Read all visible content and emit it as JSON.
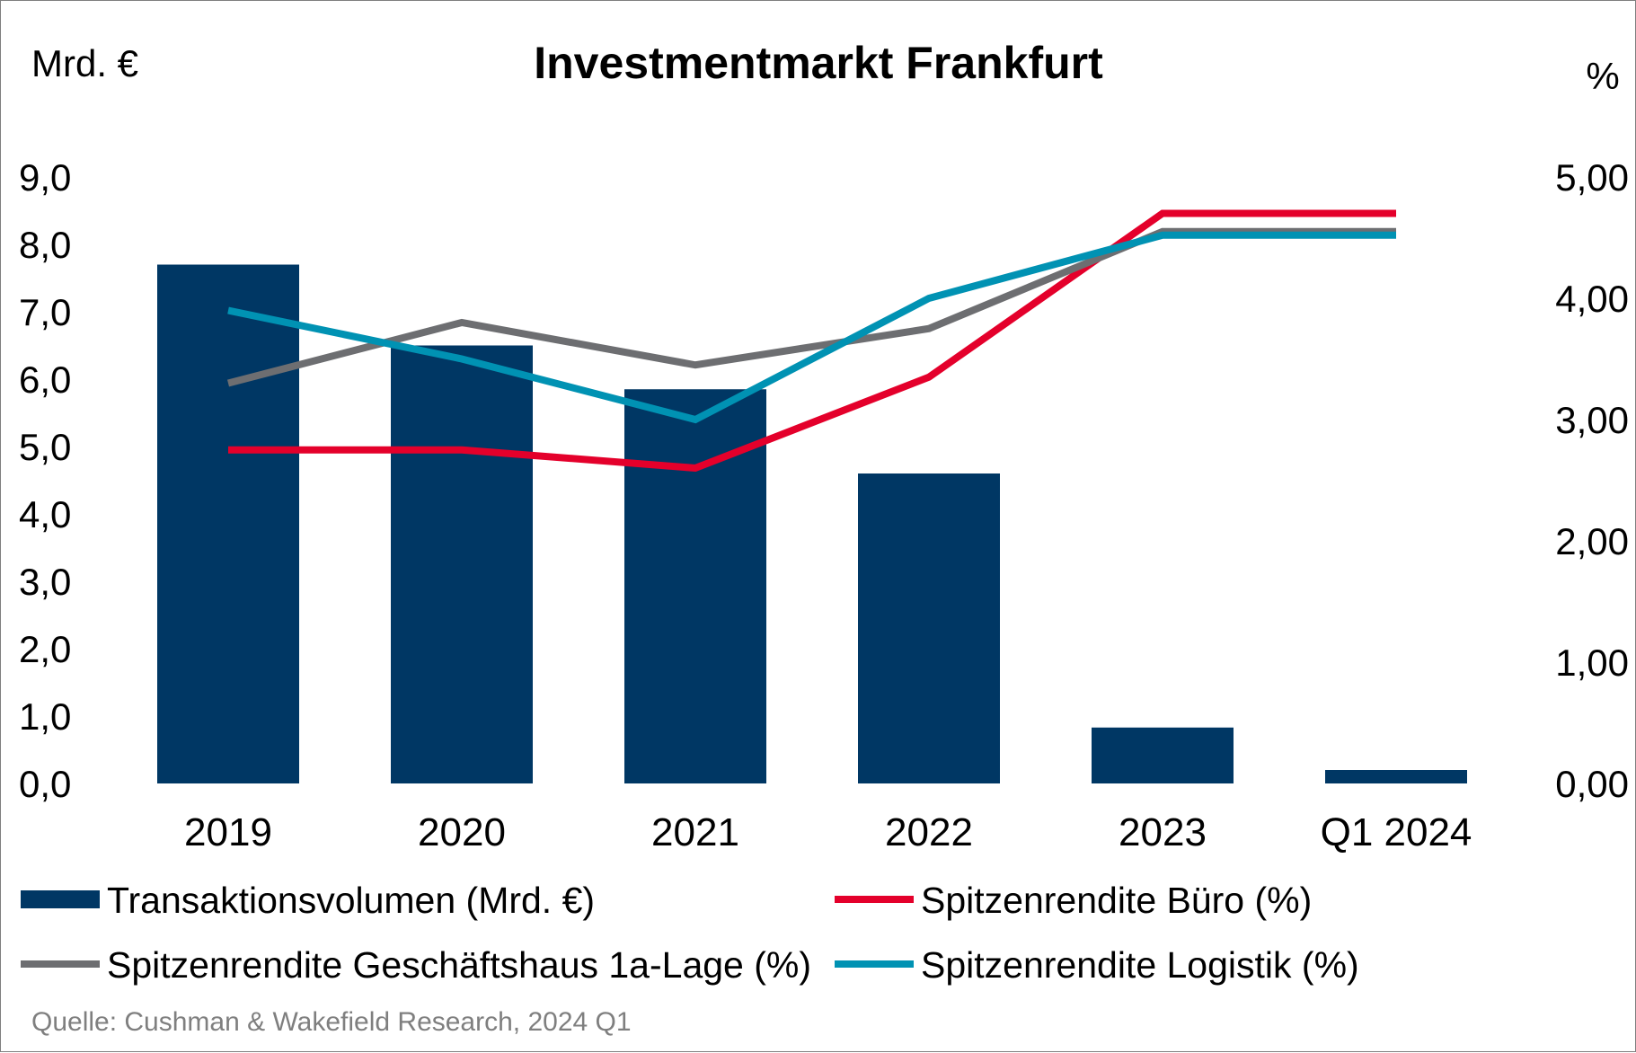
{
  "chart_data": {
    "type": "bar",
    "title": "Investmentmarkt Frankfurt",
    "y_left_unit": "Mrd. €",
    "y_right_unit": "%",
    "categories": [
      "2019",
      "2020",
      "2021",
      "2022",
      "2023",
      "Q1 2024"
    ],
    "y_left_ticks": [
      "0,0",
      "1,0",
      "2,0",
      "3,0",
      "4,0",
      "5,0",
      "6,0",
      "7,0",
      "8,0",
      "9,0"
    ],
    "y_right_ticks": [
      "0,00",
      "1,00",
      "2,00",
      "3,00",
      "4,00",
      "5,00"
    ],
    "y_left_range": [
      0,
      9
    ],
    "y_right_range": [
      0,
      5
    ],
    "series": [
      {
        "name": "Transaktionsvolumen (Mrd. €)",
        "type": "bar",
        "axis": "left",
        "color": "#003764",
        "values": [
          7.7,
          6.5,
          5.85,
          4.6,
          0.83,
          0.2
        ]
      },
      {
        "name": "Spitzenrendite Büro (%)",
        "type": "line",
        "axis": "right",
        "color": "#e4002b",
        "values": [
          2.75,
          2.75,
          2.6,
          3.35,
          4.7,
          4.7
        ]
      },
      {
        "name": "Spitzenrendite Geschäftshaus 1a-Lage (%)",
        "type": "line",
        "axis": "right",
        "color": "#6d6e71",
        "values": [
          3.3,
          3.8,
          3.45,
          3.75,
          4.55,
          4.55
        ]
      },
      {
        "name": "Spitzenrendite Logistik (%)",
        "type": "line",
        "axis": "right",
        "color": "#0092b3",
        "values": [
          3.9,
          3.5,
          3.0,
          4.0,
          4.52,
          4.52
        ]
      }
    ],
    "grid": false,
    "legend_position": "bottom"
  },
  "source": "Quelle: Cushman & Wakefield Research, 2024 Q1"
}
